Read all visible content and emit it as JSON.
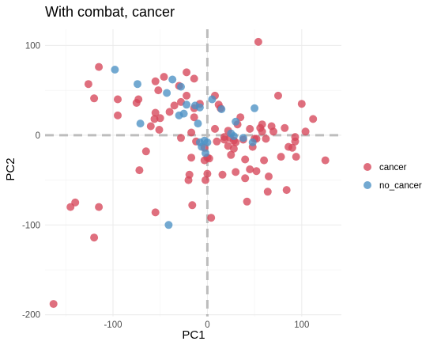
{
  "chart_data": {
    "type": "scatter",
    "title": "With combat, cancer",
    "xlabel": "PC1",
    "ylabel": "PC2",
    "xlim": [
      -172,
      142
    ],
    "ylim": [
      -202,
      118
    ],
    "x_ticks": [
      -100,
      0,
      100
    ],
    "y_ticks": [
      -200,
      -100,
      0,
      100
    ],
    "x_tick_labels": [
      "-100",
      "0",
      "100"
    ],
    "y_tick_labels": [
      "-200",
      "-100",
      "0",
      "100"
    ],
    "grid": true,
    "reference_lines": {
      "x": 0,
      "y": 0,
      "style": "dashed"
    },
    "legend_position": "right",
    "series": [
      {
        "name": "cancer",
        "color": "#D6475A",
        "points": [
          [
            -163,
            -188
          ],
          [
            -140,
            -75
          ],
          [
            -145,
            -80
          ],
          [
            -115,
            -80
          ],
          [
            -120,
            -114
          ],
          [
            -115,
            76
          ],
          [
            -126,
            57
          ],
          [
            -120,
            41
          ],
          [
            -95,
            40
          ],
          [
            -95,
            22
          ],
          [
            -75,
            36
          ],
          [
            -73,
            40
          ],
          [
            -72,
            -39
          ],
          [
            -65,
            -18
          ],
          [
            -60,
            10
          ],
          [
            -56,
            18
          ],
          [
            -55,
            25
          ],
          [
            -55,
            -86
          ],
          [
            -51,
            6
          ],
          [
            -50,
            19
          ],
          [
            -52,
            50
          ],
          [
            -55,
            60
          ],
          [
            -46,
            65
          ],
          [
            -40,
            26
          ],
          [
            -35,
            33
          ],
          [
            -28,
            37
          ],
          [
            -28,
            -3
          ],
          [
            -30,
            55
          ],
          [
            -22,
            70
          ],
          [
            -22,
            44
          ],
          [
            -14,
            63
          ],
          [
            -14,
            20
          ],
          [
            -17,
            3
          ],
          [
            -17,
            -25
          ],
          [
            -14,
            30
          ],
          [
            -12,
            -7
          ],
          [
            -8,
            35
          ],
          [
            -19,
            -44
          ],
          [
            -20,
            -50
          ],
          [
            -16,
            -78
          ],
          [
            -2,
            -50
          ],
          [
            0,
            -43
          ],
          [
            -3,
            -28
          ],
          [
            -3,
            -14
          ],
          [
            0,
            -25
          ],
          [
            2,
            -26
          ],
          [
            4,
            -92
          ],
          [
            8,
            7
          ],
          [
            8,
            44
          ],
          [
            10,
            -7
          ],
          [
            12,
            34
          ],
          [
            14,
            30
          ],
          [
            16,
            -44
          ],
          [
            18,
            -2
          ],
          [
            18,
            -5
          ],
          [
            22,
            5
          ],
          [
            24,
            -3
          ],
          [
            22,
            -12
          ],
          [
            25,
            -22
          ],
          [
            28,
            -6
          ],
          [
            30,
            -8
          ],
          [
            28,
            -15
          ],
          [
            30,
            -41
          ],
          [
            32,
            12
          ],
          [
            35,
            20
          ],
          [
            38,
            -5
          ],
          [
            40,
            -27
          ],
          [
            40,
            -48
          ],
          [
            42,
            -74
          ],
          [
            45,
            7
          ],
          [
            45,
            -38
          ],
          [
            48,
            -13
          ],
          [
            50,
            -4
          ],
          [
            52,
            -4
          ],
          [
            52,
            -40
          ],
          [
            54,
            104
          ],
          [
            56,
            8
          ],
          [
            58,
            12
          ],
          [
            58,
            4
          ],
          [
            60,
            -28
          ],
          [
            62,
            -4
          ],
          [
            64,
            -63
          ],
          [
            65,
            -46
          ],
          [
            68,
            10
          ],
          [
            70,
            4
          ],
          [
            75,
            44
          ],
          [
            78,
            -24
          ],
          [
            82,
            8
          ],
          [
            86,
            -13
          ],
          [
            84,
            -61
          ],
          [
            90,
            -14
          ],
          [
            93,
            -7
          ],
          [
            93,
            -2
          ],
          [
            94,
            -24
          ],
          [
            100,
            35
          ],
          [
            104,
            4
          ],
          [
            112,
            18
          ],
          [
            125,
            -28
          ]
        ]
      },
      {
        "name": "no_cancer",
        "color": "#4C91C4",
        "points": [
          [
            -98,
            73
          ],
          [
            -74,
            57
          ],
          [
            -71,
            13
          ],
          [
            -43,
            47
          ],
          [
            -37,
            62
          ],
          [
            -30,
            22
          ],
          [
            -28,
            54
          ],
          [
            -25,
            24
          ],
          [
            -22,
            34
          ],
          [
            -13,
            33
          ],
          [
            -10,
            13
          ],
          [
            -8,
            31
          ],
          [
            -8,
            -8
          ],
          [
            -6,
            -13
          ],
          [
            -3,
            -6
          ],
          [
            -2,
            -20
          ],
          [
            0,
            -8
          ],
          [
            -41,
            -100
          ],
          [
            5,
            40
          ],
          [
            15,
            29
          ],
          [
            25,
            2
          ],
          [
            28,
            -1
          ],
          [
            30,
            15
          ],
          [
            38,
            -3
          ],
          [
            48,
            -8
          ],
          [
            50,
            30
          ]
        ]
      }
    ]
  }
}
